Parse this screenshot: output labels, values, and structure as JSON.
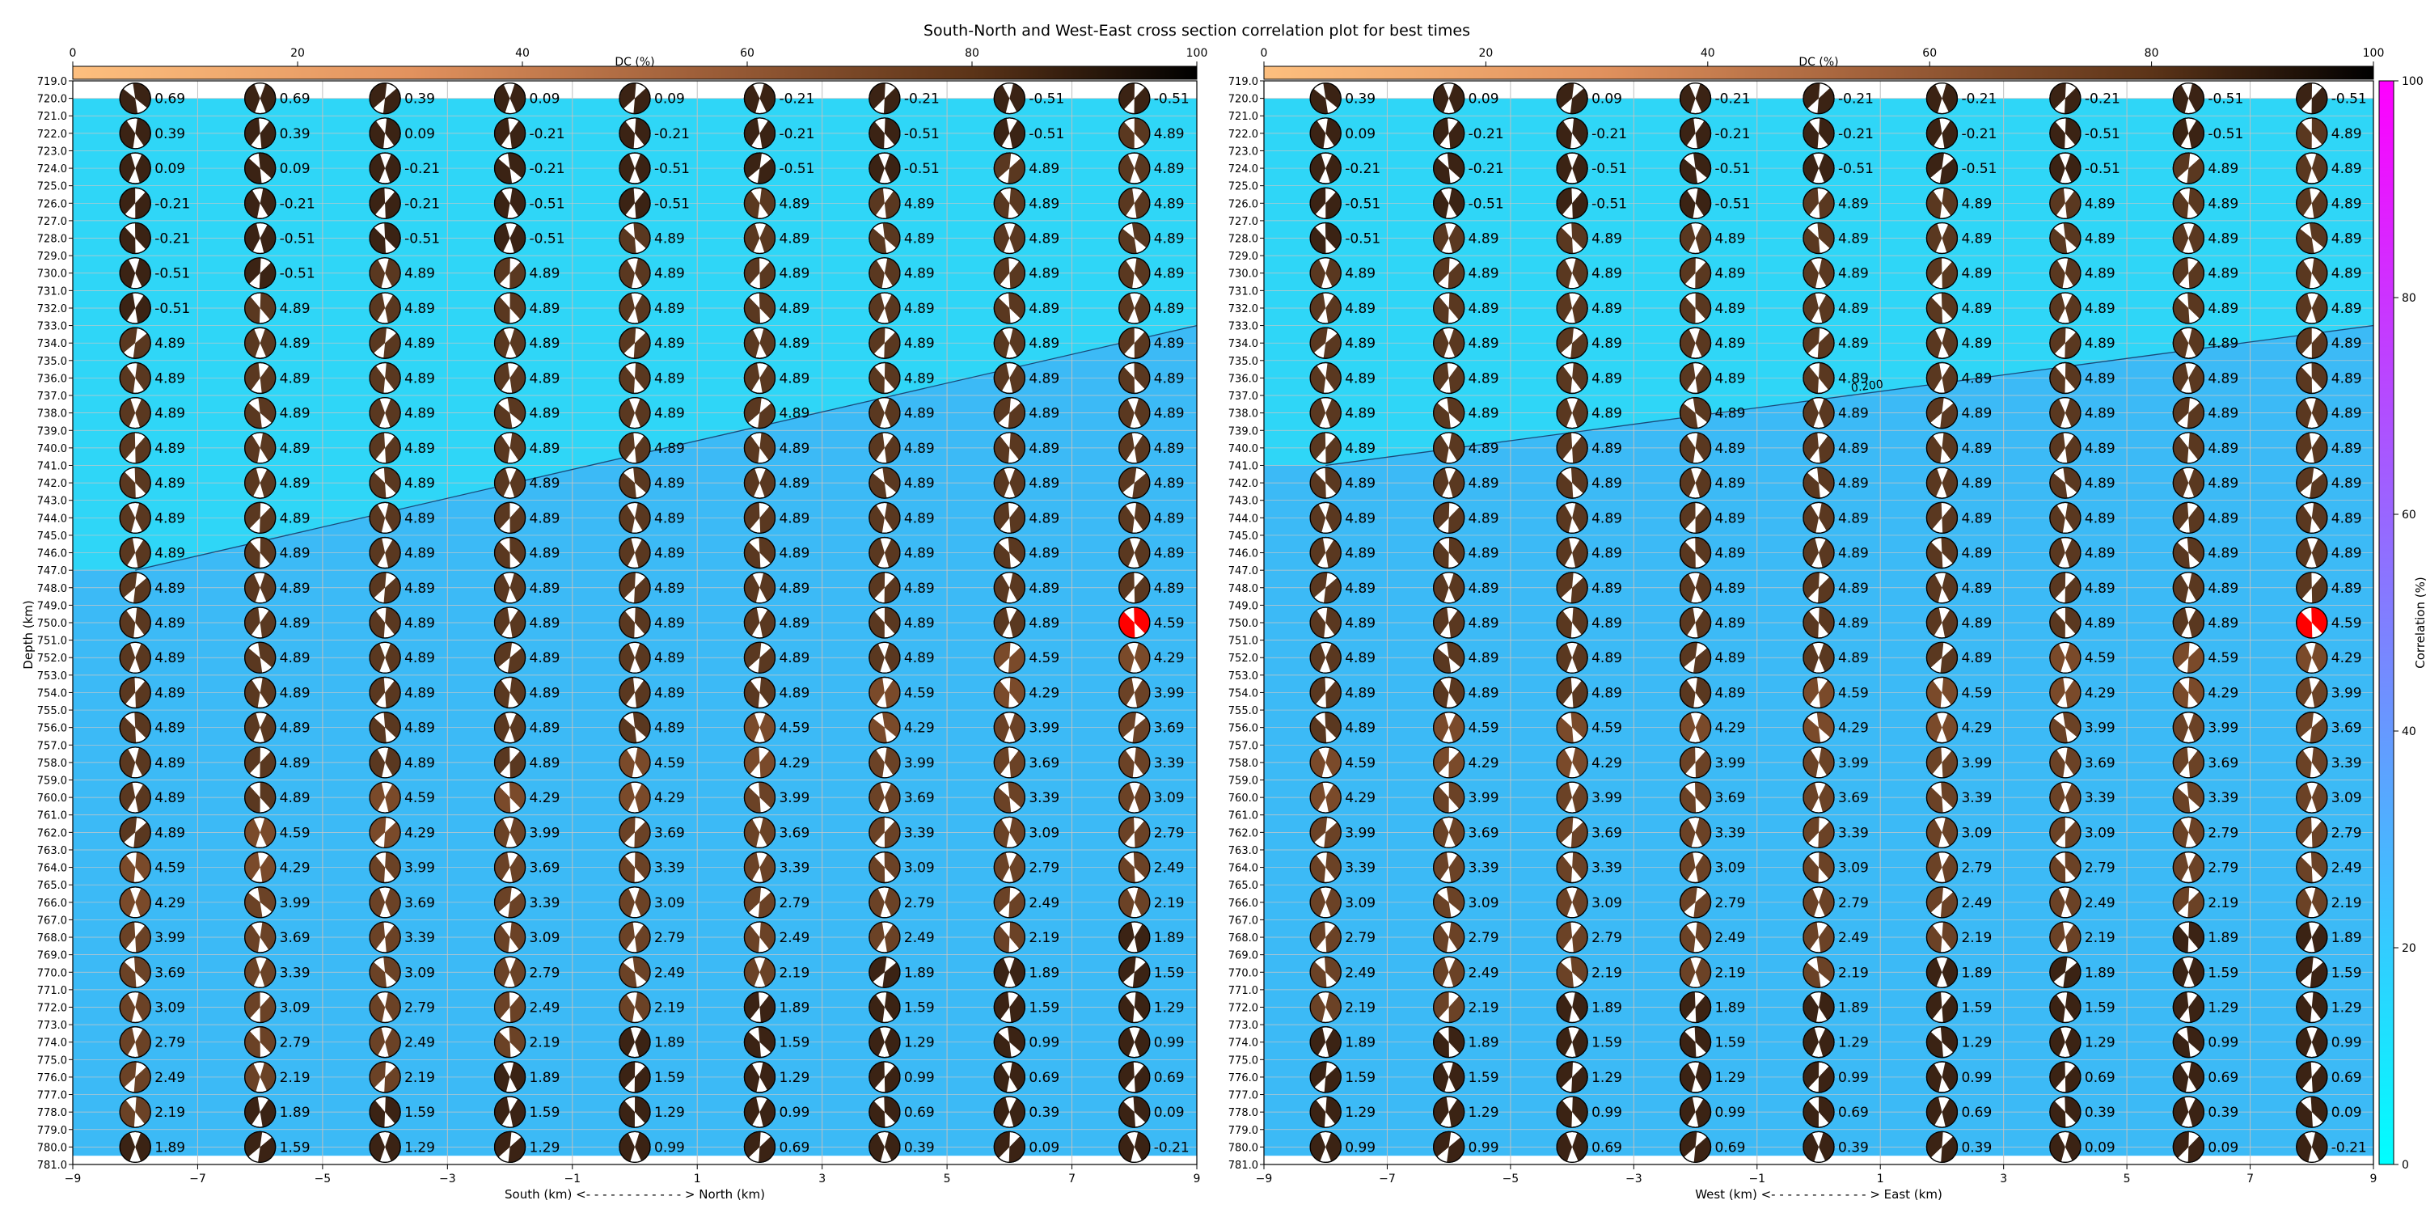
{
  "title": "South-North and West-East cross section correlation plot for best times",
  "chart_data": [
    {
      "type": "heatmap",
      "panel": "south-north",
      "xlabel": "South (km) <- - - - - - - - - - - - > North (km)",
      "ylabel": "Depth (km)",
      "xlim": [
        -9,
        9
      ],
      "ylim": [
        781,
        719
      ],
      "x_ticks": [
        -9,
        -7,
        -5,
        -3,
        -1,
        1,
        3,
        5,
        7,
        9
      ],
      "y_ticks_start": 719,
      "y_ticks_end": 781,
      "y_ticks_step": 1,
      "grid": true,
      "contour": {
        "level": 0.2,
        "label": "",
        "from": [
          -8,
          747
        ],
        "to": [
          9,
          733
        ]
      },
      "columns_x": [
        -8,
        -6,
        -4,
        -2,
        0,
        2,
        4,
        6,
        8
      ],
      "rows_depth": [
        720,
        722,
        724,
        726,
        728,
        730,
        732,
        734,
        736,
        738,
        740,
        742,
        744,
        746,
        748,
        750,
        752,
        754,
        756,
        758,
        760,
        762,
        764,
        766,
        768,
        770,
        772,
        774,
        776,
        778,
        780
      ],
      "values": [
        [
          "0.69",
          "0.69",
          "0.39",
          "0.09",
          "0.09",
          "-0.21",
          "-0.21",
          "-0.51",
          "-0.51"
        ],
        [
          "0.39",
          "0.39",
          "0.09",
          "-0.21",
          "-0.21",
          "-0.21",
          "-0.51",
          "-0.51",
          "4.89"
        ],
        [
          "0.09",
          "0.09",
          "-0.21",
          "-0.21",
          "-0.51",
          "-0.51",
          "-0.51",
          "4.89",
          "4.89"
        ],
        [
          "-0.21",
          "-0.21",
          "-0.21",
          "-0.51",
          "-0.51",
          "4.89",
          "4.89",
          "4.89",
          "4.89"
        ],
        [
          "-0.21",
          "-0.51",
          "-0.51",
          "-0.51",
          "4.89",
          "4.89",
          "4.89",
          "4.89",
          "4.89"
        ],
        [
          "-0.51",
          "-0.51",
          "4.89",
          "4.89",
          "4.89",
          "4.89",
          "4.89",
          "4.89",
          "4.89"
        ],
        [
          "-0.51",
          "4.89",
          "4.89",
          "4.89",
          "4.89",
          "4.89",
          "4.89",
          "4.89",
          "4.89"
        ],
        [
          "4.89",
          "4.89",
          "4.89",
          "4.89",
          "4.89",
          "4.89",
          "4.89",
          "4.89",
          "4.89"
        ],
        [
          "4.89",
          "4.89",
          "4.89",
          "4.89",
          "4.89",
          "4.89",
          "4.89",
          "4.89",
          "4.89"
        ],
        [
          "4.89",
          "4.89",
          "4.89",
          "4.89",
          "4.89",
          "4.89",
          "4.89",
          "4.89",
          "4.89"
        ],
        [
          "4.89",
          "4.89",
          "4.89",
          "4.89",
          "4.89",
          "4.89",
          "4.89",
          "4.89",
          "4.89"
        ],
        [
          "4.89",
          "4.89",
          "4.89",
          "4.89",
          "4.89",
          "4.89",
          "4.89",
          "4.89",
          "4.89"
        ],
        [
          "4.89",
          "4.89",
          "4.89",
          "4.89",
          "4.89",
          "4.89",
          "4.89",
          "4.89",
          "4.89"
        ],
        [
          "4.89",
          "4.89",
          "4.89",
          "4.89",
          "4.89",
          "4.89",
          "4.89",
          "4.89",
          "4.89"
        ],
        [
          "4.89",
          "4.89",
          "4.89",
          "4.89",
          "4.89",
          "4.89",
          "4.89",
          "4.89",
          "4.89"
        ],
        [
          "4.89",
          "4.89",
          "4.89",
          "4.89",
          "4.89",
          "4.89",
          "4.89",
          "4.89",
          "4.59"
        ],
        [
          "4.89",
          "4.89",
          "4.89",
          "4.89",
          "4.89",
          "4.89",
          "4.89",
          "4.59",
          "4.29"
        ],
        [
          "4.89",
          "4.89",
          "4.89",
          "4.89",
          "4.89",
          "4.89",
          "4.59",
          "4.29",
          "3.99"
        ],
        [
          "4.89",
          "4.89",
          "4.89",
          "4.89",
          "4.89",
          "4.59",
          "4.29",
          "3.99",
          "3.69"
        ],
        [
          "4.89",
          "4.89",
          "4.89",
          "4.89",
          "4.59",
          "4.29",
          "3.99",
          "3.69",
          "3.39"
        ],
        [
          "4.89",
          "4.89",
          "4.59",
          "4.29",
          "4.29",
          "3.99",
          "3.69",
          "3.39",
          "3.09"
        ],
        [
          "4.89",
          "4.59",
          "4.29",
          "3.99",
          "3.69",
          "3.69",
          "3.39",
          "3.09",
          "2.79"
        ],
        [
          "4.59",
          "4.29",
          "3.99",
          "3.69",
          "3.39",
          "3.39",
          "3.09",
          "2.79",
          "2.49"
        ],
        [
          "4.29",
          "3.99",
          "3.69",
          "3.39",
          "3.09",
          "2.79",
          "2.79",
          "2.49",
          "2.19"
        ],
        [
          "3.99",
          "3.69",
          "3.39",
          "3.09",
          "2.79",
          "2.49",
          "2.49",
          "2.19",
          "1.89"
        ],
        [
          "3.69",
          "3.39",
          "3.09",
          "2.79",
          "2.49",
          "2.19",
          "1.89",
          "1.89",
          "1.59"
        ],
        [
          "3.09",
          "3.09",
          "2.79",
          "2.49",
          "2.19",
          "1.89",
          "1.59",
          "1.59",
          "1.29"
        ],
        [
          "2.79",
          "2.79",
          "2.49",
          "2.19",
          "1.89",
          "1.59",
          "1.29",
          "0.99",
          "0.99"
        ],
        [
          "2.49",
          "2.19",
          "2.19",
          "1.89",
          "1.59",
          "1.29",
          "0.99",
          "0.69",
          "0.69"
        ],
        [
          "2.19",
          "1.89",
          "1.59",
          "1.59",
          "1.29",
          "0.99",
          "0.69",
          "0.39",
          "0.09"
        ],
        [
          "1.89",
          "1.59",
          "1.29",
          "1.29",
          "0.99",
          "0.69",
          "0.39",
          "0.09",
          "-0.21"
        ]
      ],
      "best_solution": {
        "x": 8,
        "depth": 750,
        "color": "#ff0000"
      },
      "colors": {
        "upper_region": "#2fd6f7",
        "lower_region": "#3cbaf6"
      }
    },
    {
      "type": "heatmap",
      "panel": "west-east",
      "xlabel": "West (km) <- - - - - - - - - - - - > East (km)",
      "ylabel": "",
      "xlim": [
        -9,
        9
      ],
      "ylim": [
        781,
        719
      ],
      "x_ticks": [
        -9,
        -7,
        -5,
        -3,
        -1,
        1,
        3,
        5,
        7,
        9
      ],
      "y_ticks_start": 719,
      "y_ticks_end": 781,
      "y_ticks_step": 1,
      "grid": true,
      "contour": {
        "level": 0.2,
        "label": "0.200",
        "from": [
          -8,
          741
        ],
        "to": [
          9,
          733
        ]
      },
      "columns_x": [
        -8,
        -6,
        -4,
        -2,
        0,
        2,
        4,
        6,
        8
      ],
      "rows_depth": [
        720,
        722,
        724,
        726,
        728,
        730,
        732,
        734,
        736,
        738,
        740,
        742,
        744,
        746,
        748,
        750,
        752,
        754,
        756,
        758,
        760,
        762,
        764,
        766,
        768,
        770,
        772,
        774,
        776,
        778,
        780
      ],
      "values": [
        [
          "0.39",
          "0.09",
          "0.09",
          "-0.21",
          "-0.21",
          "-0.21",
          "-0.21",
          "-0.51",
          "-0.51"
        ],
        [
          "0.09",
          "-0.21",
          "-0.21",
          "-0.21",
          "-0.21",
          "-0.21",
          "-0.51",
          "-0.51",
          "4.89"
        ],
        [
          "-0.21",
          "-0.21",
          "-0.51",
          "-0.51",
          "-0.51",
          "-0.51",
          "-0.51",
          "4.89",
          "4.89"
        ],
        [
          "-0.51",
          "-0.51",
          "-0.51",
          "-0.51",
          "4.89",
          "4.89",
          "4.89",
          "4.89",
          "4.89"
        ],
        [
          "-0.51",
          "4.89",
          "4.89",
          "4.89",
          "4.89",
          "4.89",
          "4.89",
          "4.89",
          "4.89"
        ],
        [
          "4.89",
          "4.89",
          "4.89",
          "4.89",
          "4.89",
          "4.89",
          "4.89",
          "4.89",
          "4.89"
        ],
        [
          "4.89",
          "4.89",
          "4.89",
          "4.89",
          "4.89",
          "4.89",
          "4.89",
          "4.89",
          "4.89"
        ],
        [
          "4.89",
          "4.89",
          "4.89",
          "4.89",
          "4.89",
          "4.89",
          "4.89",
          "4.89",
          "4.89"
        ],
        [
          "4.89",
          "4.89",
          "4.89",
          "4.89",
          "4.89",
          "4.89",
          "4.89",
          "4.89",
          "4.89"
        ],
        [
          "4.89",
          "4.89",
          "4.89",
          "4.89",
          "4.89",
          "4.89",
          "4.89",
          "4.89",
          "4.89"
        ],
        [
          "4.89",
          "4.89",
          "4.89",
          "4.89",
          "4.89",
          "4.89",
          "4.89",
          "4.89",
          "4.89"
        ],
        [
          "4.89",
          "4.89",
          "4.89",
          "4.89",
          "4.89",
          "4.89",
          "4.89",
          "4.89",
          "4.89"
        ],
        [
          "4.89",
          "4.89",
          "4.89",
          "4.89",
          "4.89",
          "4.89",
          "4.89",
          "4.89",
          "4.89"
        ],
        [
          "4.89",
          "4.89",
          "4.89",
          "4.89",
          "4.89",
          "4.89",
          "4.89",
          "4.89",
          "4.89"
        ],
        [
          "4.89",
          "4.89",
          "4.89",
          "4.89",
          "4.89",
          "4.89",
          "4.89",
          "4.89",
          "4.89"
        ],
        [
          "4.89",
          "4.89",
          "4.89",
          "4.89",
          "4.89",
          "4.89",
          "4.89",
          "4.89",
          "4.59"
        ],
        [
          "4.89",
          "4.89",
          "4.89",
          "4.89",
          "4.89",
          "4.89",
          "4.59",
          "4.59",
          "4.29"
        ],
        [
          "4.89",
          "4.89",
          "4.89",
          "4.89",
          "4.59",
          "4.59",
          "4.29",
          "4.29",
          "3.99"
        ],
        [
          "4.89",
          "4.59",
          "4.59",
          "4.29",
          "4.29",
          "4.29",
          "3.99",
          "3.99",
          "3.69"
        ],
        [
          "4.59",
          "4.29",
          "4.29",
          "3.99",
          "3.99",
          "3.99",
          "3.69",
          "3.69",
          "3.39"
        ],
        [
          "4.29",
          "3.99",
          "3.99",
          "3.69",
          "3.69",
          "3.39",
          "3.39",
          "3.39",
          "3.09"
        ],
        [
          "3.99",
          "3.69",
          "3.69",
          "3.39",
          "3.39",
          "3.09",
          "3.09",
          "2.79",
          "2.79"
        ],
        [
          "3.39",
          "3.39",
          "3.39",
          "3.09",
          "3.09",
          "2.79",
          "2.79",
          "2.79",
          "2.49"
        ],
        [
          "3.09",
          "3.09",
          "3.09",
          "2.79",
          "2.79",
          "2.49",
          "2.49",
          "2.19",
          "2.19"
        ],
        [
          "2.79",
          "2.79",
          "2.79",
          "2.49",
          "2.49",
          "2.19",
          "2.19",
          "1.89",
          "1.89"
        ],
        [
          "2.49",
          "2.49",
          "2.19",
          "2.19",
          "2.19",
          "1.89",
          "1.89",
          "1.59",
          "1.59"
        ],
        [
          "2.19",
          "2.19",
          "1.89",
          "1.89",
          "1.89",
          "1.59",
          "1.59",
          "1.29",
          "1.29"
        ],
        [
          "1.89",
          "1.89",
          "1.59",
          "1.59",
          "1.29",
          "1.29",
          "1.29",
          "0.99",
          "0.99"
        ],
        [
          "1.59",
          "1.59",
          "1.29",
          "1.29",
          "0.99",
          "0.99",
          "0.69",
          "0.69",
          "0.69"
        ],
        [
          "1.29",
          "1.29",
          "0.99",
          "0.99",
          "0.69",
          "0.69",
          "0.39",
          "0.39",
          "0.09"
        ],
        [
          "0.99",
          "0.99",
          "0.69",
          "0.69",
          "0.39",
          "0.39",
          "0.09",
          "0.09",
          "-0.21"
        ]
      ],
      "best_solution": {
        "x": 8,
        "depth": 750,
        "color": "#ff0000"
      },
      "colors": {
        "upper_region": "#2fd6f7",
        "lower_region": "#3cbaf6"
      }
    }
  ],
  "dc_colorbar": {
    "label": "DC (%)",
    "ticks": [
      0,
      20,
      40,
      60,
      80,
      100
    ],
    "colors": [
      "#fdbf7e",
      "#e2925e",
      "#a0603a",
      "#5c3418",
      "#000000"
    ]
  },
  "correlation_colorbar": {
    "label": "Correlation (%)",
    "ticks": [
      0,
      20,
      40,
      60,
      80,
      100
    ],
    "colors": [
      "#00ffff",
      "#ff00ff"
    ]
  }
}
